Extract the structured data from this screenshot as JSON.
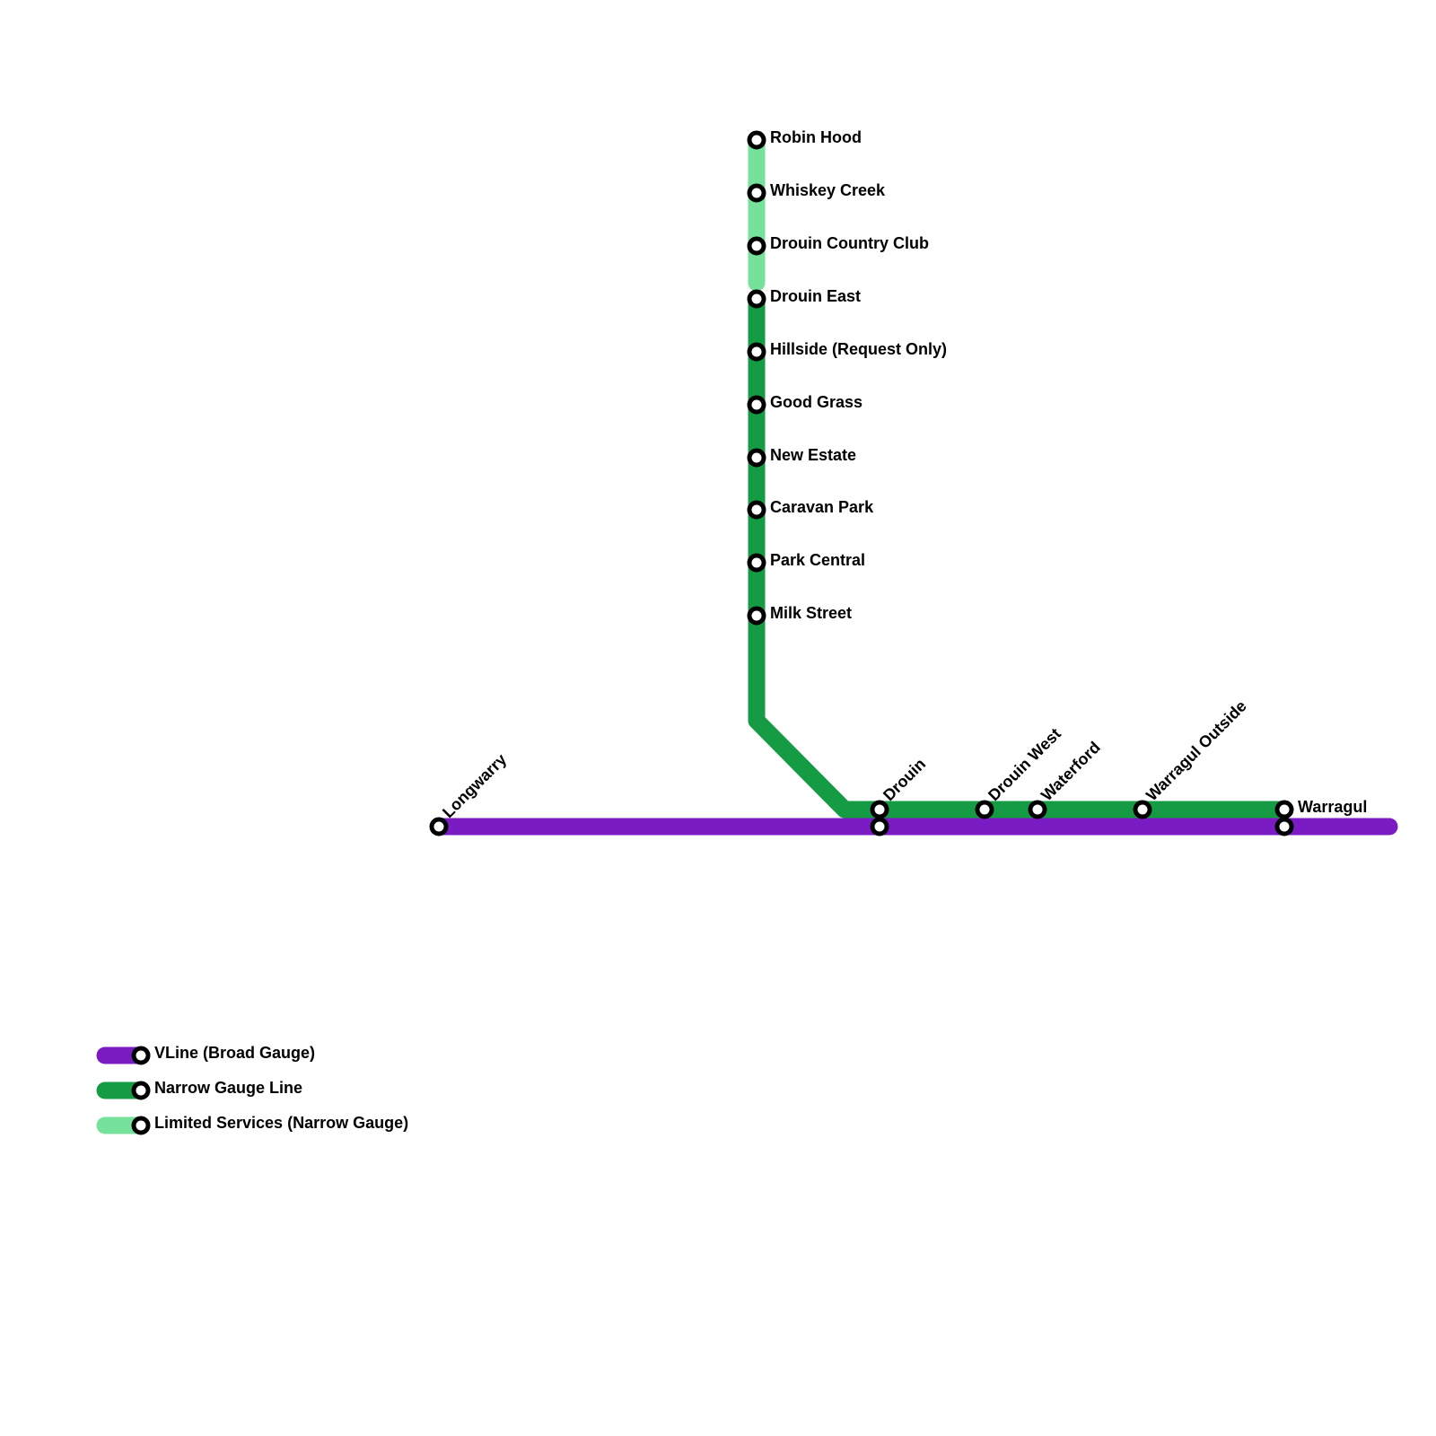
{
  "lines": [
    {
      "name": "VLine (Broad Gauge)",
      "color": "#7a1bc4"
    },
    {
      "name": "Narrow Gauge Line",
      "color": "#169b45"
    },
    {
      "name": "Limited Services (Narrow Gauge)",
      "color": "#75e19a"
    }
  ],
  "stations": [
    "Robin Hood",
    "Whiskey Creek",
    "Drouin Country Club",
    "Drouin East",
    "Hillside (Request Only)",
    "Good Grass",
    "New Estate",
    "Caravan Park",
    "Park Central",
    "Milk Street",
    "Longwarry",
    "Drouin",
    "Drouin West",
    "Waterford",
    "Warragul Outside",
    "Warragul"
  ]
}
